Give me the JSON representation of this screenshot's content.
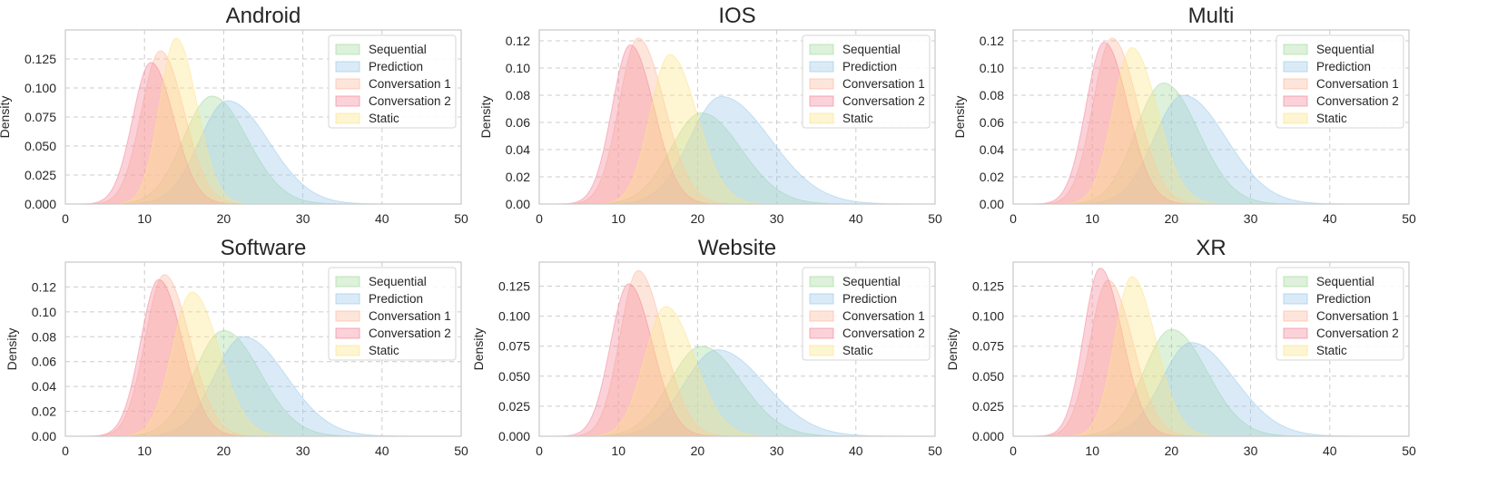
{
  "chart_data": [
    {
      "type": "area",
      "title": "Android",
      "xlabel": "",
      "ylabel": "Density",
      "xlim": [
        0,
        50
      ],
      "ylim": [
        0,
        0.15
      ],
      "xticks": [
        "0",
        "10",
        "20",
        "30",
        "40",
        "50"
      ],
      "yticks": [
        {
          "v": 0.0,
          "label": "0.000"
        },
        {
          "v": 0.025,
          "label": "0.025"
        },
        {
          "v": 0.05,
          "label": "0.050"
        },
        {
          "v": 0.075,
          "label": "0.075"
        },
        {
          "v": 0.1,
          "label": "0.100"
        },
        {
          "v": 0.125,
          "label": "0.125"
        }
      ],
      "grid": true,
      "legend": "top-right",
      "series": [
        {
          "name": "Sequential",
          "peak_x": 18.5,
          "peak_density": 0.093,
          "sd_left": 3.6,
          "sd_right": 4.5,
          "color": "#a6dba0"
        },
        {
          "name": "Prediction",
          "peak_x": 20.5,
          "peak_density": 0.089,
          "sd_left": 3.6,
          "sd_right": 5.2,
          "color": "#9ecae9"
        },
        {
          "name": "Conversation 1",
          "peak_x": 12.0,
          "peak_density": 0.132,
          "sd_left": 2.4,
          "sd_right": 3.0,
          "color": "#fcbba1"
        },
        {
          "name": "Conversation 2",
          "peak_x": 10.8,
          "peak_density": 0.122,
          "sd_left": 2.3,
          "sd_right": 2.9,
          "color": "#f48a9b"
        },
        {
          "name": "Static",
          "peak_x": 14.0,
          "peak_density": 0.143,
          "sd_left": 2.1,
          "sd_right": 2.6,
          "color": "#fde48b"
        }
      ]
    },
    {
      "type": "area",
      "title": "IOS",
      "xlabel": "",
      "ylabel": "Density",
      "xlim": [
        0,
        50
      ],
      "ylim": [
        0,
        0.128
      ],
      "xticks": [
        "0",
        "10",
        "20",
        "30",
        "40",
        "50"
      ],
      "yticks": [
        {
          "v": 0.0,
          "label": "0.00"
        },
        {
          "v": 0.02,
          "label": "0.02"
        },
        {
          "v": 0.04,
          "label": "0.04"
        },
        {
          "v": 0.06,
          "label": "0.06"
        },
        {
          "v": 0.08,
          "label": "0.08"
        },
        {
          "v": 0.1,
          "label": "0.10"
        },
        {
          "v": 0.12,
          "label": "0.12"
        }
      ],
      "grid": true,
      "legend": "top-right",
      "series": [
        {
          "name": "Sequential",
          "peak_x": 20.5,
          "peak_density": 0.067,
          "sd_left": 3.9,
          "sd_right": 5.0,
          "color": "#a6dba0"
        },
        {
          "name": "Prediction",
          "peak_x": 23.0,
          "peak_density": 0.079,
          "sd_left": 4.0,
          "sd_right": 6.2,
          "color": "#9ecae9"
        },
        {
          "name": "Conversation 1",
          "peak_x": 12.5,
          "peak_density": 0.122,
          "sd_left": 2.4,
          "sd_right": 3.3,
          "color": "#fcbba1"
        },
        {
          "name": "Conversation 2",
          "peak_x": 11.5,
          "peak_density": 0.117,
          "sd_left": 2.3,
          "sd_right": 3.0,
          "color": "#f48a9b"
        },
        {
          "name": "Static",
          "peak_x": 16.5,
          "peak_density": 0.11,
          "sd_left": 2.5,
          "sd_right": 3.4,
          "color": "#fde48b"
        }
      ]
    },
    {
      "type": "area",
      "title": "Multi",
      "xlabel": "",
      "ylabel": "Density",
      "xlim": [
        0,
        50
      ],
      "ylim": [
        0,
        0.128
      ],
      "xticks": [
        "0",
        "10",
        "20",
        "30",
        "40",
        "50"
      ],
      "yticks": [
        {
          "v": 0.0,
          "label": "0.00"
        },
        {
          "v": 0.02,
          "label": "0.02"
        },
        {
          "v": 0.04,
          "label": "0.04"
        },
        {
          "v": 0.06,
          "label": "0.06"
        },
        {
          "v": 0.08,
          "label": "0.08"
        },
        {
          "v": 0.1,
          "label": "0.10"
        },
        {
          "v": 0.12,
          "label": "0.12"
        }
      ],
      "grid": true,
      "legend": "top-right",
      "series": [
        {
          "name": "Sequential",
          "peak_x": 19.0,
          "peak_density": 0.089,
          "sd_left": 3.5,
          "sd_right": 4.4,
          "color": "#a6dba0"
        },
        {
          "name": "Prediction",
          "peak_x": 21.5,
          "peak_density": 0.08,
          "sd_left": 3.7,
          "sd_right": 5.4,
          "color": "#9ecae9"
        },
        {
          "name": "Conversation 1",
          "peak_x": 12.5,
          "peak_density": 0.122,
          "sd_left": 2.4,
          "sd_right": 3.2,
          "color": "#fcbba1"
        },
        {
          "name": "Conversation 2",
          "peak_x": 11.5,
          "peak_density": 0.119,
          "sd_left": 2.3,
          "sd_right": 3.0,
          "color": "#f48a9b"
        },
        {
          "name": "Static",
          "peak_x": 15.0,
          "peak_density": 0.115,
          "sd_left": 2.4,
          "sd_right": 3.2,
          "color": "#fde48b"
        }
      ]
    },
    {
      "type": "area",
      "title": "Software",
      "xlabel": "",
      "ylabel": "Density",
      "xlim": [
        0,
        50
      ],
      "ylim": [
        0,
        0.14
      ],
      "xticks": [
        "0",
        "10",
        "20",
        "30",
        "40",
        "50"
      ],
      "yticks": [
        {
          "v": 0.0,
          "label": "0.00"
        },
        {
          "v": 0.02,
          "label": "0.02"
        },
        {
          "v": 0.04,
          "label": "0.04"
        },
        {
          "v": 0.06,
          "label": "0.06"
        },
        {
          "v": 0.08,
          "label": "0.08"
        },
        {
          "v": 0.1,
          "label": "0.10"
        },
        {
          "v": 0.12,
          "label": "0.12"
        }
      ],
      "grid": true,
      "legend": "top-right",
      "series": [
        {
          "name": "Sequential",
          "peak_x": 20.0,
          "peak_density": 0.085,
          "sd_left": 3.7,
          "sd_right": 4.6,
          "color": "#a6dba0"
        },
        {
          "name": "Prediction",
          "peak_x": 22.5,
          "peak_density": 0.08,
          "sd_left": 3.7,
          "sd_right": 5.4,
          "color": "#9ecae9"
        },
        {
          "name": "Conversation 1",
          "peak_x": 12.5,
          "peak_density": 0.13,
          "sd_left": 2.4,
          "sd_right": 3.2,
          "color": "#fcbba1"
        },
        {
          "name": "Conversation 2",
          "peak_x": 11.8,
          "peak_density": 0.126,
          "sd_left": 2.3,
          "sd_right": 3.0,
          "color": "#f48a9b"
        },
        {
          "name": "Static",
          "peak_x": 16.0,
          "peak_density": 0.116,
          "sd_left": 2.5,
          "sd_right": 3.4,
          "color": "#fde48b"
        }
      ]
    },
    {
      "type": "area",
      "title": "Website",
      "xlabel": "",
      "ylabel": "Density",
      "xlim": [
        0,
        50
      ],
      "ylim": [
        0,
        0.145
      ],
      "xticks": [
        "0",
        "10",
        "20",
        "30",
        "40",
        "50"
      ],
      "yticks": [
        {
          "v": 0.0,
          "label": "0.000"
        },
        {
          "v": 0.025,
          "label": "0.025"
        },
        {
          "v": 0.05,
          "label": "0.050"
        },
        {
          "v": 0.075,
          "label": "0.075"
        },
        {
          "v": 0.1,
          "label": "0.100"
        },
        {
          "v": 0.125,
          "label": "0.125"
        }
      ],
      "grid": true,
      "legend": "top-right",
      "series": [
        {
          "name": "Sequential",
          "peak_x": 20.5,
          "peak_density": 0.075,
          "sd_left": 4.0,
          "sd_right": 5.0,
          "color": "#a6dba0"
        },
        {
          "name": "Prediction",
          "peak_x": 22.5,
          "peak_density": 0.072,
          "sd_left": 4.2,
          "sd_right": 6.0,
          "color": "#9ecae9"
        },
        {
          "name": "Conversation 1",
          "peak_x": 12.5,
          "peak_density": 0.138,
          "sd_left": 2.3,
          "sd_right": 3.2,
          "color": "#fcbba1"
        },
        {
          "name": "Conversation 2",
          "peak_x": 11.3,
          "peak_density": 0.127,
          "sd_left": 2.3,
          "sd_right": 3.0,
          "color": "#f48a9b"
        },
        {
          "name": "Static",
          "peak_x": 16.0,
          "peak_density": 0.108,
          "sd_left": 2.7,
          "sd_right": 3.6,
          "color": "#fde48b"
        }
      ]
    },
    {
      "type": "area",
      "title": "XR",
      "xlabel": "",
      "ylabel": "Density",
      "xlim": [
        0,
        50
      ],
      "ylim": [
        0,
        0.145
      ],
      "xticks": [
        "0",
        "10",
        "20",
        "30",
        "40",
        "50"
      ],
      "yticks": [
        {
          "v": 0.0,
          "label": "0.000"
        },
        {
          "v": 0.025,
          "label": "0.025"
        },
        {
          "v": 0.05,
          "label": "0.050"
        },
        {
          "v": 0.075,
          "label": "0.075"
        },
        {
          "v": 0.1,
          "label": "0.100"
        },
        {
          "v": 0.125,
          "label": "0.125"
        }
      ],
      "grid": true,
      "legend": "top-right",
      "series": [
        {
          "name": "Sequential",
          "peak_x": 20.0,
          "peak_density": 0.089,
          "sd_left": 3.5,
          "sd_right": 4.5,
          "color": "#a6dba0"
        },
        {
          "name": "Prediction",
          "peak_x": 22.5,
          "peak_density": 0.078,
          "sd_left": 3.7,
          "sd_right": 5.5,
          "color": "#9ecae9"
        },
        {
          "name": "Conversation 1",
          "peak_x": 12.0,
          "peak_density": 0.13,
          "sd_left": 2.3,
          "sd_right": 3.1,
          "color": "#fcbba1"
        },
        {
          "name": "Conversation 2",
          "peak_x": 11.0,
          "peak_density": 0.14,
          "sd_left": 2.1,
          "sd_right": 2.8,
          "color": "#f48a9b"
        },
        {
          "name": "Static",
          "peak_x": 15.0,
          "peak_density": 0.133,
          "sd_left": 2.2,
          "sd_right": 3.0,
          "color": "#fde48b"
        }
      ]
    }
  ]
}
